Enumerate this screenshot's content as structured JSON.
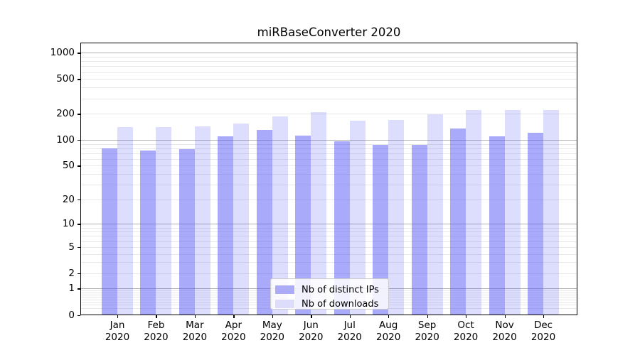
{
  "title": "miRBaseConverter 2020",
  "chart_data": {
    "type": "bar",
    "title": "miRBaseConverter 2020",
    "xlabel": "",
    "ylabel": "",
    "x_scale_note": "grouped bars per month, two series side by side",
    "y_scale": "log-like (log10 of 1+value), shows 0 at baseline",
    "ylim": [
      0,
      1310
    ],
    "grid": "horizontal major + minor, drawn under semi-transparent bars",
    "legend_position": "lower center inside plot",
    "year": "2020",
    "months": [
      "Jan",
      "Feb",
      "Mar",
      "Apr",
      "May",
      "Jun",
      "Jul",
      "Aug",
      "Sep",
      "Oct",
      "Nov",
      "Dec"
    ],
    "categories": [
      "Jan 2020",
      "Feb 2020",
      "Mar 2020",
      "Apr 2020",
      "May 2020",
      "Jun 2020",
      "Jul 2020",
      "Aug 2020",
      "Sep 2020",
      "Oct 2020",
      "Nov 2020",
      "Dec 2020"
    ],
    "y_ticks": [
      0,
      1,
      2,
      5,
      10,
      20,
      50,
      100,
      200,
      500,
      1000
    ],
    "series": [
      {
        "name": "Nb of distinct IPs",
        "color_fill": "rgba(86,86,246,0.5)",
        "color_solid": "#ababf8",
        "values": [
          80,
          75,
          78,
          110,
          130,
          111,
          97,
          88,
          88,
          136,
          110,
          120
        ]
      },
      {
        "name": "Nb of downloads",
        "color_fill": "rgba(86,86,246,0.2)",
        "color_solid": "#ddddfb",
        "values": [
          140,
          140,
          144,
          153,
          187,
          210,
          165,
          170,
          197,
          220,
          220,
          220
        ]
      }
    ]
  },
  "colors": {
    "background": "#ffffff",
    "axis": "#000000",
    "grid_major": "#b0b0b0",
    "grid_minor": "#e8e8e8",
    "title_text": "#000000",
    "tick_text": "#000000"
  }
}
